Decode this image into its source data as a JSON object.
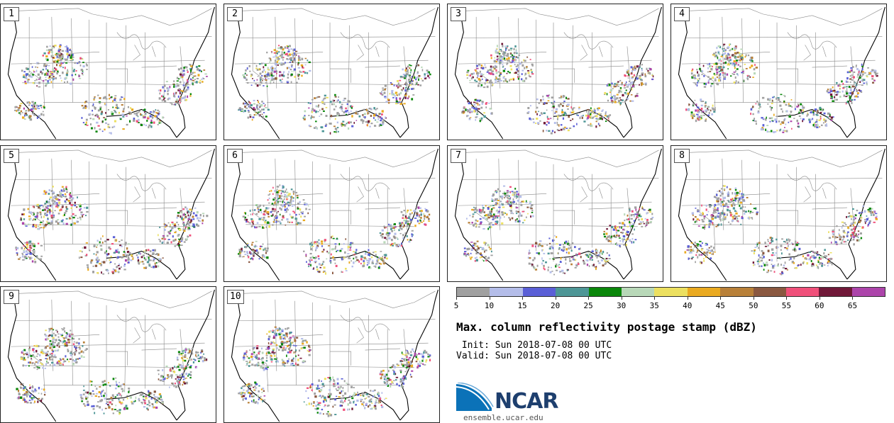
{
  "panels": [
    {
      "label": "1"
    },
    {
      "label": "2"
    },
    {
      "label": "3"
    },
    {
      "label": "4"
    },
    {
      "label": "5"
    },
    {
      "label": "6"
    },
    {
      "label": "7"
    },
    {
      "label": "8"
    },
    {
      "label": "9"
    },
    {
      "label": "10"
    }
  ],
  "colorbar": {
    "colors": [
      "#a0a0a0",
      "#b4bde9",
      "#5a5fd6",
      "#4d9696",
      "#0a870a",
      "#b8d8b8",
      "#ece060",
      "#eaaa20",
      "#b88038",
      "#8a5840",
      "#f0507a",
      "#701838",
      "#ac44aa"
    ],
    "ticks": [
      "5",
      "10",
      "15",
      "20",
      "25",
      "30",
      "35",
      "40",
      "45",
      "50",
      "55",
      "60",
      "65"
    ]
  },
  "title": "Max. column reflectivity postage stamp (dBZ)",
  "init": " Init: Sun 2018-07-08 00 UTC",
  "valid": "Valid: Sun 2018-07-08 00 UTC",
  "logo": {
    "name": "NCAR",
    "url": "ensemble.ucar.edu"
  }
}
